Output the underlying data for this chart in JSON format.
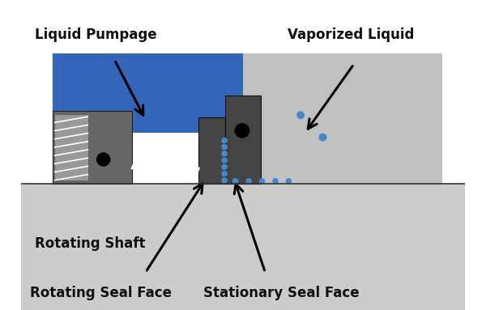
{
  "bg_color": "#ffffff",
  "shaft_color": "#cccccc",
  "dark_gray": "#666666",
  "darker_gray": "#444444",
  "spring_bg": "#888888",
  "light_gray_housing": "#c0c0c0",
  "blue_liquid": "#3366bb",
  "spring_color": "#dddddd",
  "dot_color": "#4488cc",
  "text_color": "#111111",
  "labels": {
    "liquid_pumpage": "Liquid Pumpage",
    "vaporized_liquid": "Vaporized Liquid",
    "rotating_shaft": "Rotating Shaft",
    "rotating_seal_face": "Rotating Seal Face",
    "stationary_seal_face": "Stationary Seal Face"
  }
}
